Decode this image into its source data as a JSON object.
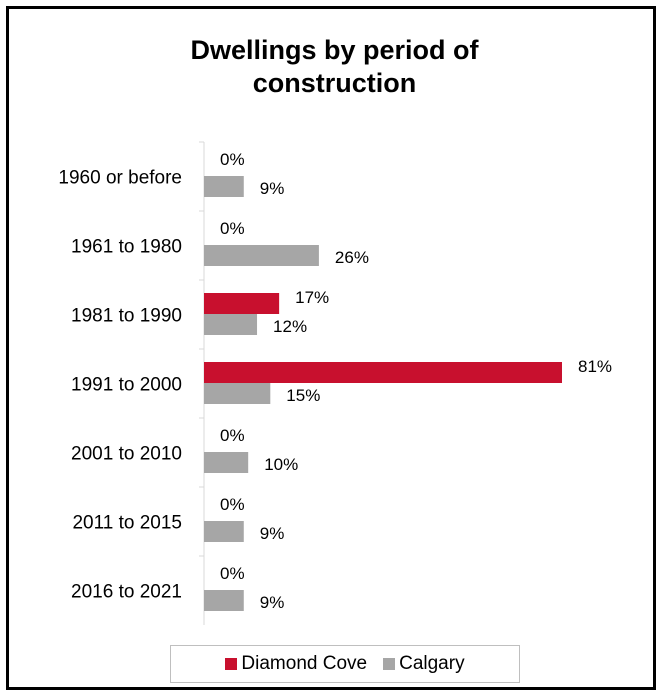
{
  "chart_data": {
    "type": "bar",
    "orientation": "horizontal",
    "title": "Dwellings by period of construction",
    "title_lines": [
      "Dwellings by period of",
      "construction"
    ],
    "categories": [
      "1960 or before",
      "1961 to 1980",
      "1981 to 1990",
      "1991 to 2000",
      "2001 to 2010",
      "2011 to 2015",
      "2016 to 2021"
    ],
    "series": [
      {
        "name": "Diamond Cove",
        "color": "#c8102e",
        "values": [
          0,
          0,
          17,
          81,
          0,
          0,
          0
        ],
        "labels": [
          "0%",
          "0%",
          "17%",
          "81%",
          "0%",
          "0%",
          "0%"
        ]
      },
      {
        "name": "Calgary",
        "color": "#a6a6a6",
        "values": [
          9,
          26,
          12,
          15,
          10,
          9,
          9
        ],
        "labels": [
          "9%",
          "26%",
          "12%",
          "15%",
          "10%",
          "9%",
          "9%"
        ]
      }
    ],
    "xlim": [
      0,
      81
    ],
    "xlabel": "",
    "ylabel": "",
    "grid": false,
    "legend_position": "bottom"
  }
}
